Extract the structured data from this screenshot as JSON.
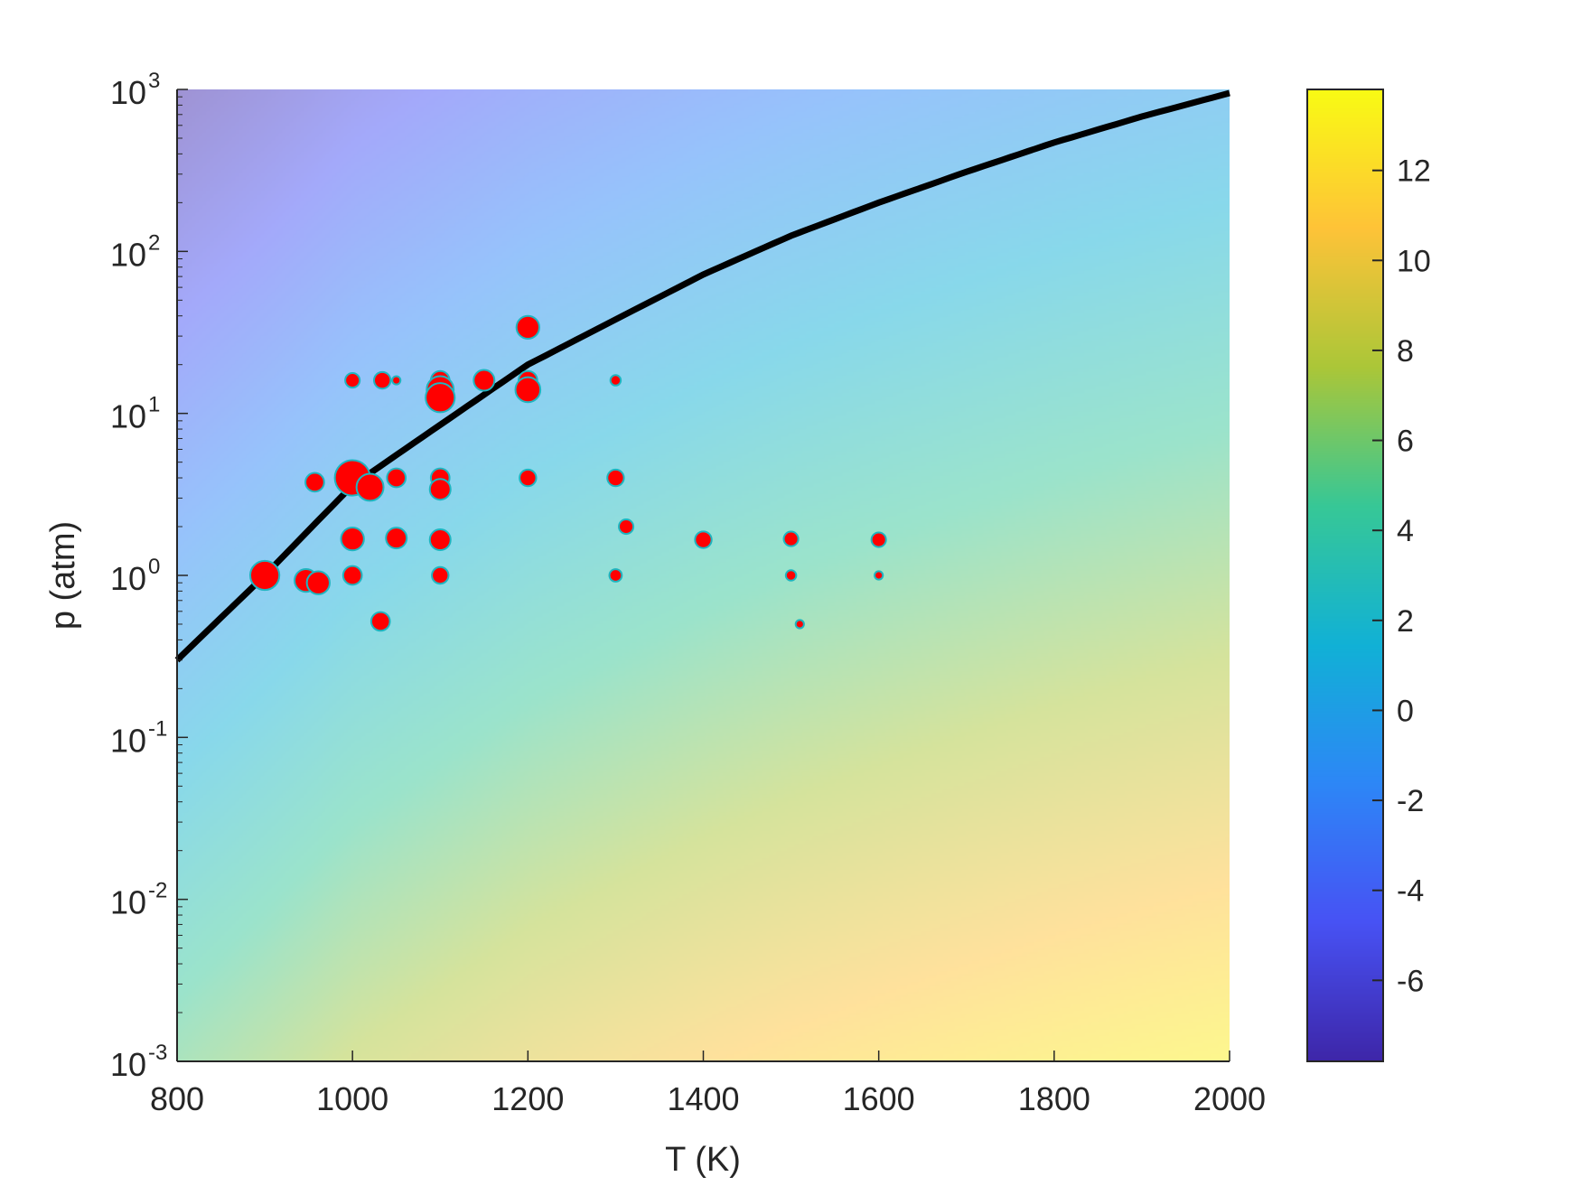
{
  "chart_data": {
    "type": "scatter",
    "title": "",
    "xlabel": "T (K)",
    "ylabel": "p (atm)",
    "xlim": [
      800,
      2000
    ],
    "ylim": [
      0.001,
      1000
    ],
    "yscale": "log",
    "grid": false,
    "x_ticks": [
      800,
      1000,
      1200,
      1400,
      1600,
      1800,
      2000
    ],
    "x_tick_labels": [
      "800",
      "1000",
      "1200",
      "1400",
      "1600",
      "1800",
      "2000"
    ],
    "y_ticks": [
      {
        "value": 1000,
        "base": "10",
        "exp": "3"
      },
      {
        "value": 100,
        "base": "10",
        "exp": "2"
      },
      {
        "value": 10,
        "base": "10",
        "exp": "1"
      },
      {
        "value": 1,
        "base": "10",
        "exp": "0"
      },
      {
        "value": 0.1,
        "base": "10",
        "exp": "-1"
      },
      {
        "value": 0.01,
        "base": "10",
        "exp": "-2"
      },
      {
        "value": 0.001,
        "base": "10",
        "exp": "-3"
      }
    ],
    "colorbar": {
      "colormap": "parula",
      "clim": [
        -7.8,
        13.8
      ],
      "ticks": [
        12,
        10,
        8,
        6,
        4,
        2,
        0,
        -2,
        -4,
        -6
      ],
      "tick_labels": [
        "12",
        "10",
        "8",
        "6",
        "4",
        "2",
        "0",
        "-2",
        "-4",
        "-6"
      ]
    },
    "boundary_curve": {
      "color": "#000000",
      "T": [
        800,
        900,
        1000,
        1100,
        1200,
        1300,
        1400,
        1500,
        1600,
        1700,
        1800,
        1900,
        2000
      ],
      "p": [
        0.3,
        1.0,
        3.6,
        8.5,
        20,
        38,
        72,
        125,
        200,
        310,
        470,
        680,
        950
      ]
    },
    "points": {
      "fill": "#ff0000",
      "edge": "#1fb5c0",
      "data": [
        {
          "T": 1000,
          "p": 16,
          "s": 7
        },
        {
          "T": 1034,
          "p": 16,
          "s": 8
        },
        {
          "T": 1050,
          "p": 16,
          "s": 4
        },
        {
          "T": 1100,
          "p": 16,
          "s": 9
        },
        {
          "T": 1100,
          "p": 14,
          "s": 13
        },
        {
          "T": 1100,
          "p": 12.5,
          "s": 14
        },
        {
          "T": 1150,
          "p": 16,
          "s": 10
        },
        {
          "T": 1200,
          "p": 34,
          "s": 11
        },
        {
          "T": 1200,
          "p": 16,
          "s": 9
        },
        {
          "T": 1200,
          "p": 14,
          "s": 12
        },
        {
          "T": 1300,
          "p": 16,
          "s": 5
        },
        {
          "T": 957,
          "p": 3.76,
          "s": 9
        },
        {
          "T": 1000,
          "p": 4.0,
          "s": 17
        },
        {
          "T": 1020,
          "p": 3.5,
          "s": 13
        },
        {
          "T": 1050,
          "p": 4.0,
          "s": 9
        },
        {
          "T": 1100,
          "p": 4.0,
          "s": 9
        },
        {
          "T": 1100,
          "p": 3.4,
          "s": 10
        },
        {
          "T": 1200,
          "p": 4.0,
          "s": 8
        },
        {
          "T": 1300,
          "p": 4.0,
          "s": 8
        },
        {
          "T": 1312,
          "p": 2.0,
          "s": 7
        },
        {
          "T": 1000,
          "p": 1.68,
          "s": 11
        },
        {
          "T": 1050,
          "p": 1.7,
          "s": 10
        },
        {
          "T": 1100,
          "p": 1.66,
          "s": 10
        },
        {
          "T": 1400,
          "p": 1.66,
          "s": 8
        },
        {
          "T": 1500,
          "p": 1.68,
          "s": 7
        },
        {
          "T": 1600,
          "p": 1.66,
          "s": 7
        },
        {
          "T": 900,
          "p": 1.0,
          "s": 14
        },
        {
          "T": 947,
          "p": 0.93,
          "s": 11
        },
        {
          "T": 961,
          "p": 0.9,
          "s": 11
        },
        {
          "T": 1000,
          "p": 1.0,
          "s": 9
        },
        {
          "T": 1100,
          "p": 1.0,
          "s": 8
        },
        {
          "T": 1300,
          "p": 1.0,
          "s": 6
        },
        {
          "T": 1500,
          "p": 1.0,
          "s": 5
        },
        {
          "T": 1600,
          "p": 1.0,
          "s": 4
        },
        {
          "T": 1032,
          "p": 0.52,
          "s": 9
        },
        {
          "T": 1510,
          "p": 0.5,
          "s": 4
        }
      ]
    }
  }
}
